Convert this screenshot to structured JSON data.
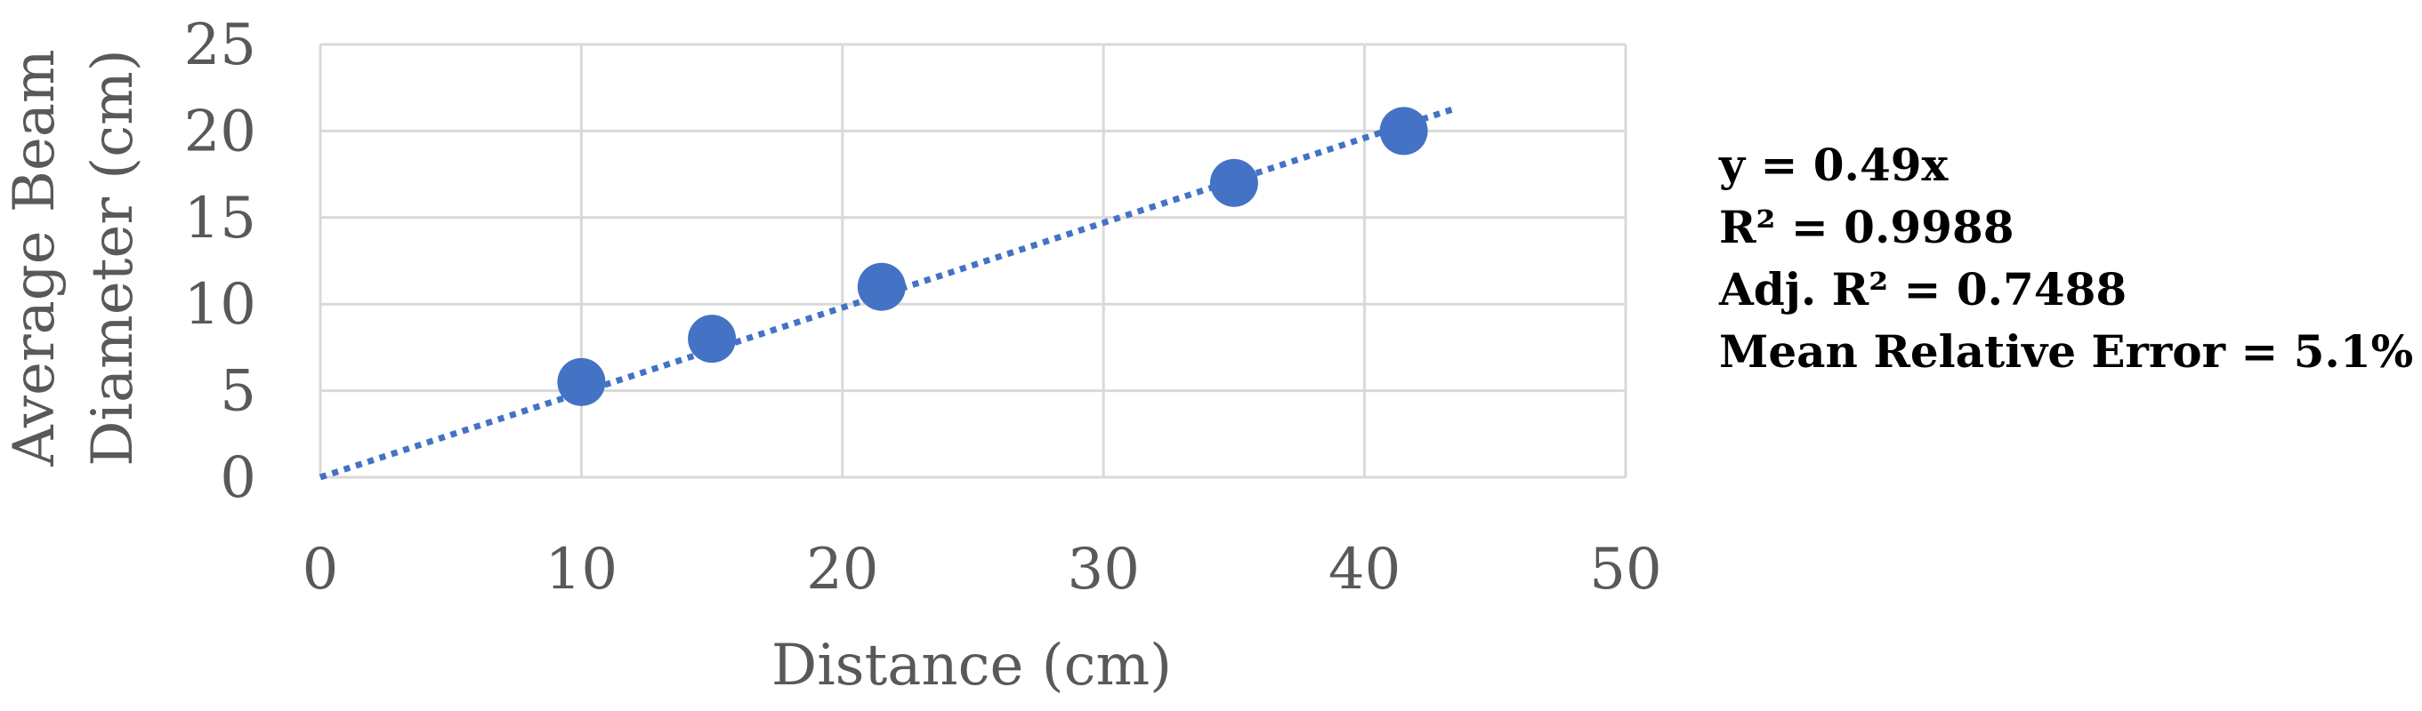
{
  "chart_data": {
    "type": "scatter",
    "title": "",
    "xlabel": "Distance (cm)",
    "ylabel_lines": [
      "Average Beam",
      "Diameter (cm)"
    ],
    "xlim": [
      0,
      50
    ],
    "ylim": [
      0,
      25
    ],
    "x_ticks": [
      "0",
      "10",
      "20",
      "30",
      "40",
      "50"
    ],
    "y_ticks": [
      "0",
      "5",
      "10",
      "15",
      "20",
      "25"
    ],
    "grid": true,
    "points": [
      {
        "x": 10,
        "y": 5.5
      },
      {
        "x": 15,
        "y": 8
      },
      {
        "x": 21.5,
        "y": 11
      },
      {
        "x": 35,
        "y": 17
      },
      {
        "x": 41.5,
        "y": 20
      }
    ],
    "trendline": {
      "type": "linear",
      "slope": 0.49,
      "intercept": 0,
      "x_range": [
        0,
        43.5
      ],
      "style": "dotted"
    },
    "annotations": [
      "y = 0.49x",
      "R² = 0.9988",
      "Adj. R² = 0.7488",
      "Mean Relative Error = 5.1%"
    ],
    "colors": {
      "marker": "#4472C4",
      "trendline": "#4472C4",
      "grid": "#D9D9D9",
      "axis_text": "#595959"
    }
  }
}
